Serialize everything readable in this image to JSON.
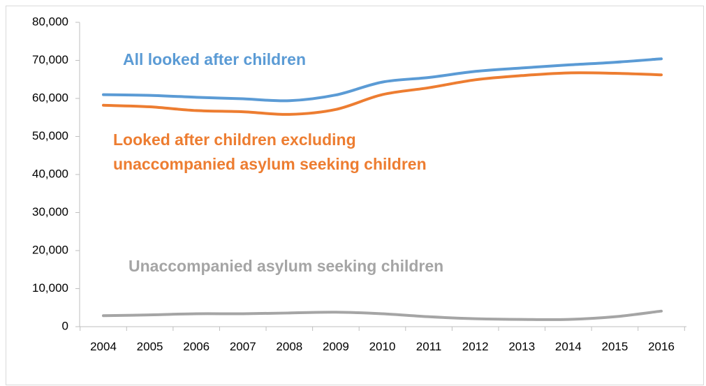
{
  "chart_data": {
    "type": "line",
    "title": "",
    "xlabel": "",
    "ylabel": "",
    "x": [
      "2004",
      "2005",
      "2006",
      "2007",
      "2008",
      "2009",
      "2010",
      "2011",
      "2012",
      "2013",
      "2014",
      "2015",
      "2016"
    ],
    "ylim": [
      0,
      80000
    ],
    "y_ticks": [
      "0",
      "10,000",
      "20,000",
      "30,000",
      "40,000",
      "50,000",
      "60,000",
      "70,000",
      "80,000"
    ],
    "y_tick_values": [
      0,
      10000,
      20000,
      30000,
      40000,
      50000,
      60000,
      70000,
      80000
    ],
    "grid": false,
    "legend": "inline labels",
    "series": [
      {
        "name": "All looked after children",
        "label_lines": [
          "All looked after children"
        ],
        "color": "#5b9bd5",
        "values": [
          61000,
          60800,
          60300,
          59900,
          59400,
          60900,
          64300,
          65500,
          67100,
          68000,
          68800,
          69500,
          70400
        ]
      },
      {
        "name": "Looked after children excluding unaccompanied asylum seeking children",
        "label_lines": [
          "Looked after children excluding",
          "unaccompanied asylum seeking children"
        ],
        "color": "#ed7d31",
        "values": [
          58200,
          57800,
          56800,
          56500,
          55800,
          57100,
          61000,
          62800,
          64900,
          66000,
          66700,
          66600,
          66200
        ]
      },
      {
        "name": "Unaccompanied asylum seeking children",
        "label_lines": [
          "Unaccompanied asylum seeking children"
        ],
        "color": "#a5a5a5",
        "values": [
          2900,
          3100,
          3400,
          3400,
          3600,
          3800,
          3400,
          2600,
          2100,
          1900,
          1900,
          2600,
          4100
        ]
      }
    ]
  }
}
